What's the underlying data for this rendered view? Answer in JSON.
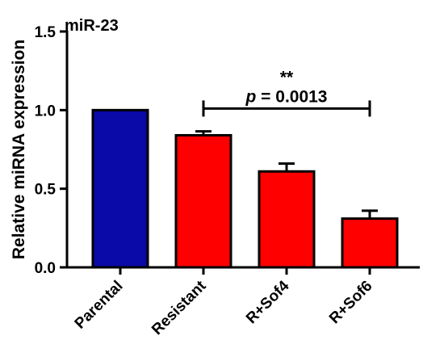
{
  "chart_data": {
    "type": "bar",
    "title": "miR-23",
    "ylabel": "Relative miRNA expression",
    "xlabel": "",
    "ylim": [
      0,
      1.5
    ],
    "yticks": [
      "0.0",
      "0.5",
      "1.0",
      "1.5"
    ],
    "categories": [
      "Parental",
      "Resistant",
      "R+Sof4",
      "R+Sof6"
    ],
    "values": [
      1.0,
      0.84,
      0.61,
      0.31
    ],
    "errors": [
      0.0,
      0.025,
      0.05,
      0.05
    ],
    "colors": [
      "#0a0aa8",
      "#ff0000",
      "#ff0000",
      "#ff0000"
    ],
    "annotation": {
      "stars": "**",
      "p_prefix": "p",
      "p_text": " = 0.0013",
      "from_category": "Resistant",
      "to_category": "R+Sof6",
      "bracket_y": 1.01
    }
  }
}
